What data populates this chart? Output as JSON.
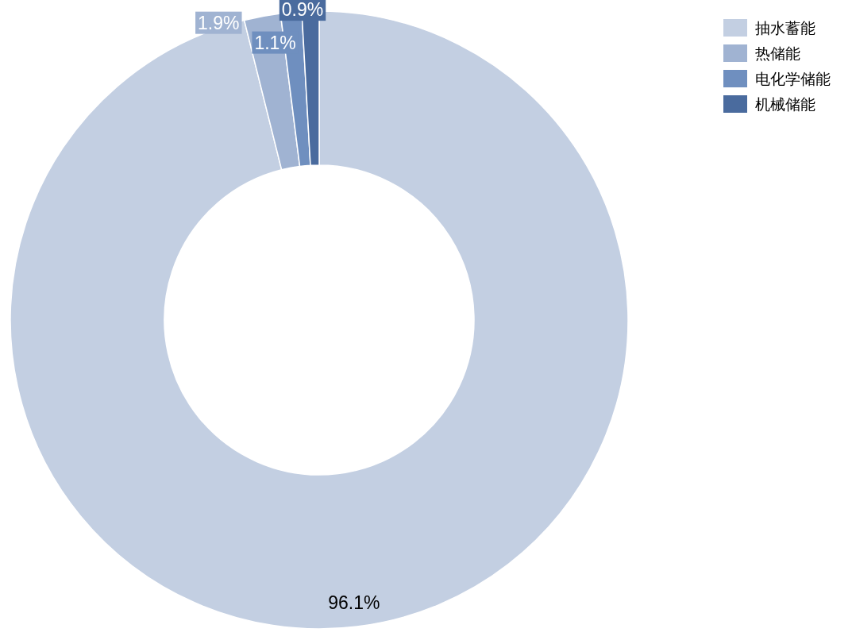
{
  "chart_data": {
    "type": "donut",
    "categories": [
      "抽水蓄能",
      "热储能",
      "电化学储能",
      "机械储能"
    ],
    "values": [
      96.1,
      1.9,
      1.1,
      0.9
    ],
    "colors": [
      "#c3cfe2",
      "#a0b3d2",
      "#6f8fbf",
      "#4a6b9e"
    ],
    "value_labels": [
      "96.1%",
      "1.9%",
      "1.1%",
      "0.9%"
    ],
    "legend": "top right"
  }
}
